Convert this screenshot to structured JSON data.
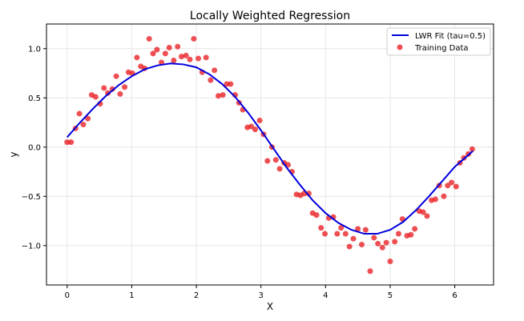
{
  "chart_data": {
    "type": "scatter",
    "title": "Locally Weighted Regression",
    "xlabel": "X",
    "ylabel": "y",
    "xlim": [
      -0.32,
      6.6
    ],
    "ylim": [
      -1.4,
      1.25
    ],
    "xticks": [
      0,
      1,
      2,
      3,
      4,
      5,
      6
    ],
    "yticks": [
      -1.0,
      -0.5,
      0.0,
      0.5,
      1.0
    ],
    "xtick_labels": [
      "0",
      "1",
      "2",
      "3",
      "4",
      "5",
      "6"
    ],
    "ytick_labels": [
      "−1.0",
      "−0.5",
      "0.0",
      "0.5",
      "1.0"
    ],
    "grid": true,
    "legend_position": "top-right",
    "fit_line": {
      "name": "LWR Fit (tau=0.5)",
      "color": "#0000dd",
      "x": [
        0.0,
        0.2,
        0.4,
        0.6,
        0.8,
        1.0,
        1.2,
        1.4,
        1.6,
        1.8,
        2.0,
        2.2,
        2.4,
        2.6,
        2.8,
        3.0,
        3.2,
        3.4,
        3.6,
        3.8,
        4.0,
        4.2,
        4.4,
        4.6,
        4.8,
        5.0,
        5.2,
        5.4,
        5.6,
        5.8,
        6.0,
        6.28
      ],
      "y": [
        0.1,
        0.25,
        0.39,
        0.52,
        0.63,
        0.72,
        0.79,
        0.83,
        0.85,
        0.84,
        0.81,
        0.74,
        0.64,
        0.51,
        0.35,
        0.17,
        -0.02,
        -0.21,
        -0.38,
        -0.54,
        -0.67,
        -0.77,
        -0.84,
        -0.88,
        -0.88,
        -0.84,
        -0.76,
        -0.64,
        -0.5,
        -0.35,
        -0.2,
        -0.04
      ]
    },
    "scatter": {
      "name": "Training Data",
      "color": "#e8141a",
      "points": [
        [
          0.0,
          0.05
        ],
        [
          0.06,
          0.05
        ],
        [
          0.13,
          0.19
        ],
        [
          0.19,
          0.34
        ],
        [
          0.25,
          0.23
        ],
        [
          0.32,
          0.29
        ],
        [
          0.38,
          0.53
        ],
        [
          0.44,
          0.51
        ],
        [
          0.51,
          0.44
        ],
        [
          0.57,
          0.6
        ],
        [
          0.63,
          0.55
        ],
        [
          0.7,
          0.59
        ],
        [
          0.76,
          0.72
        ],
        [
          0.82,
          0.54
        ],
        [
          0.89,
          0.61
        ],
        [
          0.95,
          0.76
        ],
        [
          1.01,
          0.75
        ],
        [
          1.08,
          0.91
        ],
        [
          1.14,
          0.82
        ],
        [
          1.2,
          0.8
        ],
        [
          1.27,
          1.1
        ],
        [
          1.33,
          0.95
        ],
        [
          1.39,
          0.99
        ],
        [
          1.46,
          0.86
        ],
        [
          1.52,
          0.95
        ],
        [
          1.58,
          1.01
        ],
        [
          1.65,
          0.88
        ],
        [
          1.71,
          1.02
        ],
        [
          1.77,
          0.92
        ],
        [
          1.84,
          0.93
        ],
        [
          1.9,
          0.89
        ],
        [
          1.96,
          1.1
        ],
        [
          2.03,
          0.9
        ],
        [
          2.09,
          0.76
        ],
        [
          2.15,
          0.91
        ],
        [
          2.22,
          0.68
        ],
        [
          2.28,
          0.78
        ],
        [
          2.34,
          0.52
        ],
        [
          2.41,
          0.53
        ],
        [
          2.47,
          0.64
        ],
        [
          2.53,
          0.64
        ],
        [
          2.6,
          0.53
        ],
        [
          2.66,
          0.45
        ],
        [
          2.72,
          0.38
        ],
        [
          2.79,
          0.2
        ],
        [
          2.85,
          0.21
        ],
        [
          2.91,
          0.18
        ],
        [
          2.98,
          0.27
        ],
        [
          3.04,
          0.13
        ],
        [
          3.1,
          -0.14
        ],
        [
          3.17,
          0.0
        ],
        [
          3.23,
          -0.13
        ],
        [
          3.29,
          -0.22
        ],
        [
          3.36,
          -0.16
        ],
        [
          3.42,
          -0.18
        ],
        [
          3.48,
          -0.25
        ],
        [
          3.55,
          -0.48
        ],
        [
          3.61,
          -0.49
        ],
        [
          3.67,
          -0.47
        ],
        [
          3.74,
          -0.47
        ],
        [
          3.8,
          -0.67
        ],
        [
          3.86,
          -0.69
        ],
        [
          3.93,
          -0.82
        ],
        [
          3.99,
          -0.88
        ],
        [
          4.05,
          -0.72
        ],
        [
          4.12,
          -0.71
        ],
        [
          4.18,
          -0.88
        ],
        [
          4.24,
          -0.82
        ],
        [
          4.31,
          -0.88
        ],
        [
          4.37,
          -1.01
        ],
        [
          4.43,
          -0.93
        ],
        [
          4.5,
          -0.83
        ],
        [
          4.56,
          -0.99
        ],
        [
          4.62,
          -0.84
        ],
        [
          4.69,
          -1.26
        ],
        [
          4.75,
          -0.92
        ],
        [
          4.81,
          -0.98
        ],
        [
          4.88,
          -1.02
        ],
        [
          4.94,
          -0.97
        ],
        [
          5.0,
          -1.16
        ],
        [
          5.07,
          -0.96
        ],
        [
          5.13,
          -0.88
        ],
        [
          5.19,
          -0.73
        ],
        [
          5.26,
          -0.9
        ],
        [
          5.32,
          -0.89
        ],
        [
          5.38,
          -0.83
        ],
        [
          5.45,
          -0.65
        ],
        [
          5.51,
          -0.66
        ],
        [
          5.57,
          -0.7
        ],
        [
          5.64,
          -0.54
        ],
        [
          5.7,
          -0.53
        ],
        [
          5.76,
          -0.39
        ],
        [
          5.83,
          -0.5
        ],
        [
          5.89,
          -0.39
        ],
        [
          5.95,
          -0.36
        ],
        [
          6.02,
          -0.4
        ],
        [
          6.08,
          -0.16
        ],
        [
          6.14,
          -0.11
        ],
        [
          6.21,
          -0.07
        ],
        [
          6.27,
          -0.02
        ]
      ]
    }
  }
}
